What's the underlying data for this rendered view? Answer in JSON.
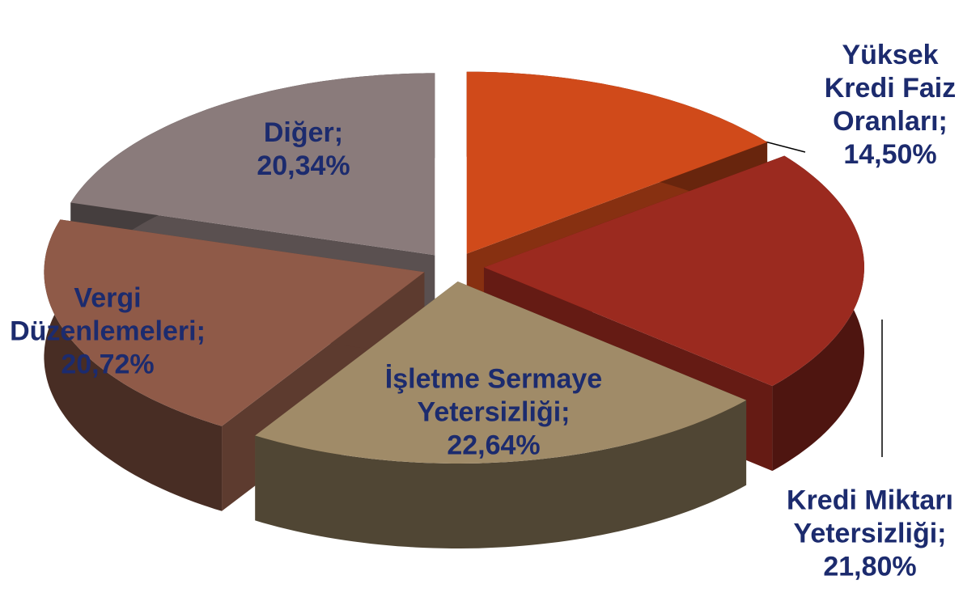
{
  "chart_data": {
    "type": "pie3d",
    "labels": [
      "Yüksek Kredi Faiz Oranları; 14,50%",
      "Kredi Miktarı Yetersizliği; 21,80%",
      "İşletme Sermaye Yetersizliği; 22,64%",
      "Vergi Düzenlemeleri; 20,72%",
      "Diğer; 20,34%"
    ],
    "values": [
      14.5,
      21.8,
      22.64,
      20.72,
      20.34
    ],
    "colors": [
      "#d04a1a",
      "#9b2a1f",
      "#a08b68",
      "#8f5a48",
      "#8a7b7b"
    ]
  }
}
